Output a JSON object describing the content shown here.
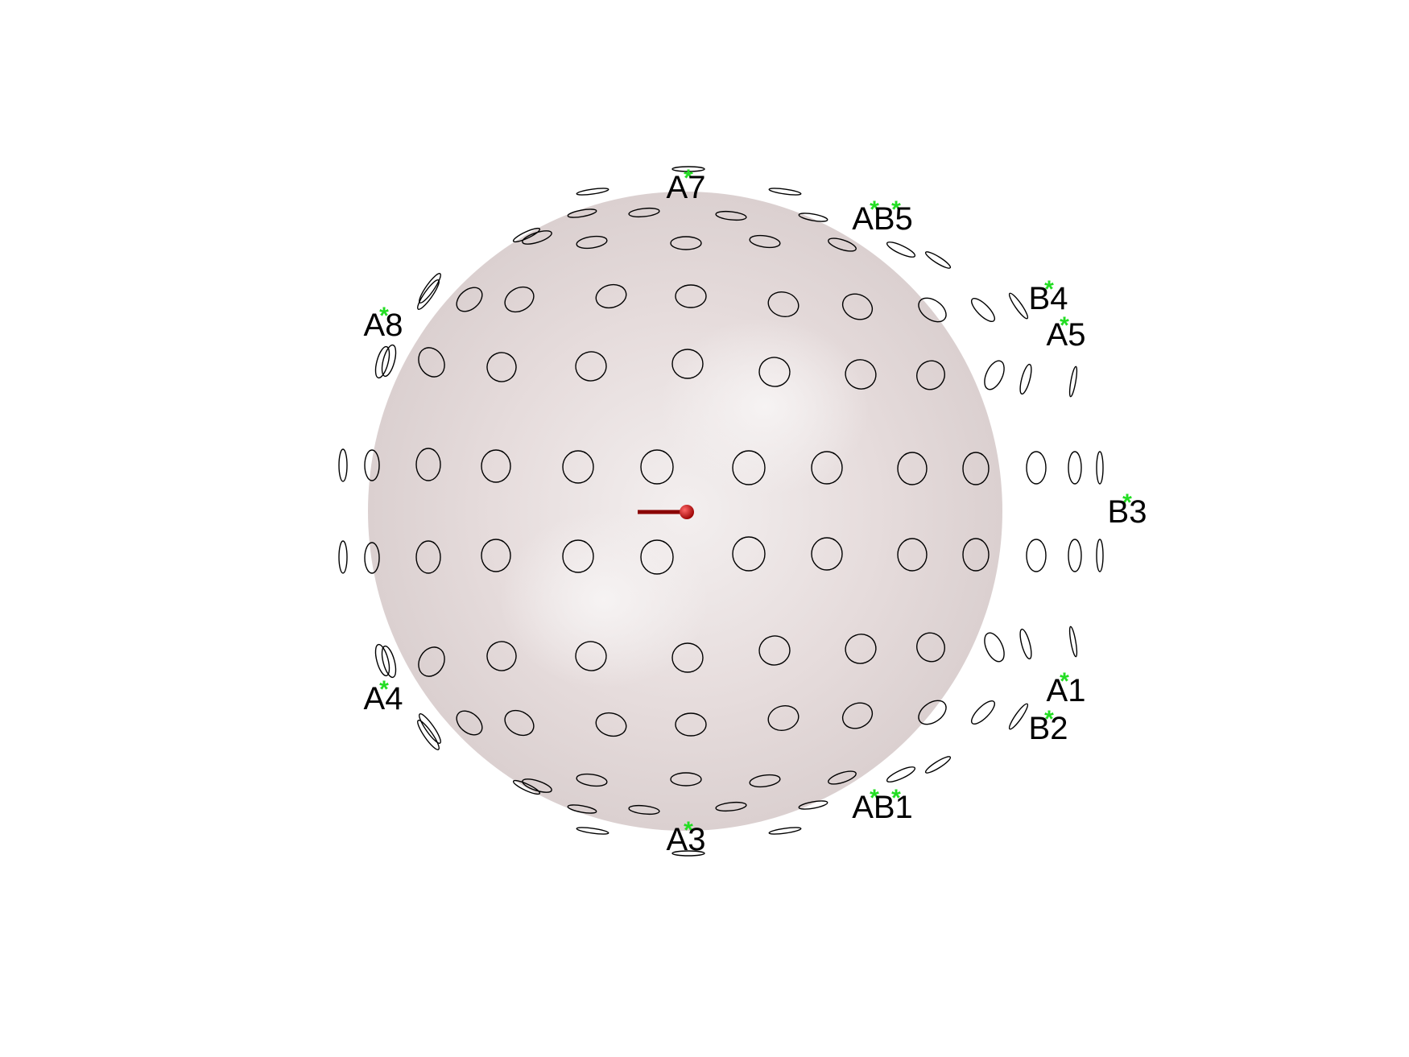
{
  "figure": {
    "sphere_color": "#d9cfcf",
    "ellipse_stroke": "#000000",
    "marker_color": "#22dd22",
    "label_color": "#000000",
    "dipole_color": "#b00000",
    "dipole": {
      "label_shown": false
    }
  },
  "sensor_labels": [
    {
      "id": "A7",
      "text": "A7"
    },
    {
      "id": "AB5",
      "text": "AB5"
    },
    {
      "id": "B4",
      "text": "B4"
    },
    {
      "id": "A5",
      "text": "A5"
    },
    {
      "id": "A8",
      "text": "A8"
    },
    {
      "id": "B3",
      "text": "B3"
    },
    {
      "id": "A1",
      "text": "A1"
    },
    {
      "id": "B2",
      "text": "B2"
    },
    {
      "id": "A4",
      "text": "A4"
    },
    {
      "id": "AB1",
      "text": "AB1"
    },
    {
      "id": "A3",
      "text": "A3"
    }
  ]
}
